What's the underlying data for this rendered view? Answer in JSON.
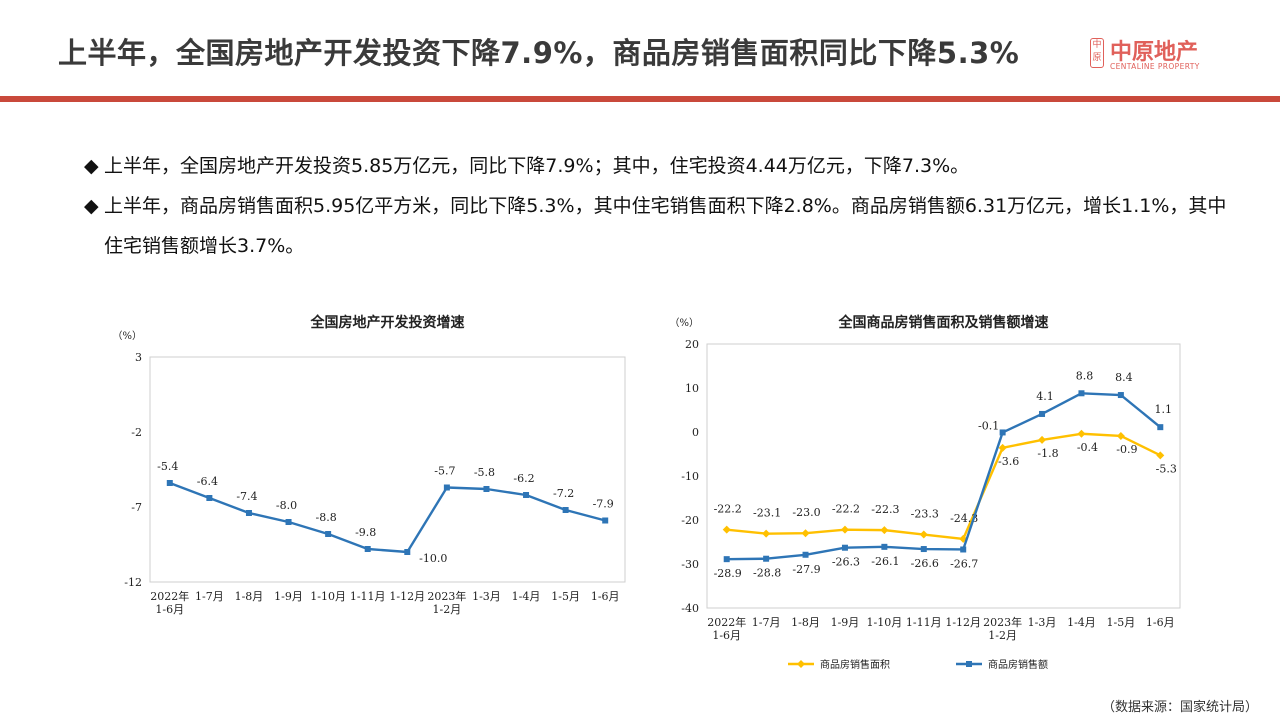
{
  "header": {
    "title": "上半年，全国房地产开发投资下降7.9%，商品房销售面积同比下降5.3%",
    "logo_cn": "中原地产",
    "logo_en": "CENTALINE PROPERTY",
    "logo_mark": "中原",
    "accent_color": "#c9493b"
  },
  "bullets": [
    {
      "marker": "◆",
      "text": "上半年，全国房地产开发投资5.85万亿元，同比下降7.9%；其中，住宅投资4.44万亿元，下降7.3%。"
    },
    {
      "marker": "◆",
      "text": "上半年，商品房销售面积5.95亿平方米，同比下降5.3%，其中住宅销售面积下降2.8%。商品房销售额6.31万亿元，增长1.1%，其中住宅销售额增长3.7%。"
    }
  ],
  "chart_data": [
    {
      "type": "line",
      "title": "全国房地产开发投资增速",
      "unit": "（%）",
      "categories": [
        "2022年\n1-6月",
        "1-7月",
        "1-8月",
        "1-9月",
        "1-10月",
        "1-11月",
        "1-12月",
        "2023年\n1-2月",
        "1-3月",
        "1-4月",
        "1-5月",
        "1-6月"
      ],
      "yticks": [
        3,
        -2,
        -7,
        -12
      ],
      "ylim": [
        -12,
        3
      ],
      "grid": false,
      "series": [
        {
          "values": [
            -5.4,
            -6.4,
            -7.4,
            -8.0,
            -8.8,
            -9.8,
            -10.0,
            -5.7,
            -5.8,
            -6.2,
            -7.2,
            -7.9
          ],
          "color": "#2e75b6"
        }
      ]
    },
    {
      "type": "line",
      "title": "全国商品房销售面积及销售额增速",
      "unit": "（%）",
      "categories": [
        "2022年\n1-6月",
        "1-7月",
        "1-8月",
        "1-9月",
        "1-10月",
        "1-11月",
        "1-12月",
        "2023年\n1-2月",
        "1-3月",
        "1-4月",
        "1-5月",
        "1-6月"
      ],
      "yticks": [
        20,
        10,
        0,
        -10,
        -20,
        -30,
        -40
      ],
      "ylim": [
        -40,
        20
      ],
      "grid": false,
      "legend": "bottom",
      "series": [
        {
          "name": "商品房销售面积",
          "values": [
            -22.2,
            -23.1,
            -23.0,
            -22.2,
            -22.3,
            -23.3,
            -24.3,
            -3.6,
            -1.8,
            -0.4,
            -0.9,
            -5.3
          ],
          "color": "#ffc000",
          "marker": "diamond"
        },
        {
          "name": "商品房销售额",
          "values": [
            -28.9,
            -28.8,
            -27.9,
            -26.3,
            -26.1,
            -26.6,
            -26.7,
            -0.1,
            4.1,
            8.8,
            8.4,
            1.1
          ],
          "color": "#2e75b6",
          "marker": "square"
        }
      ]
    }
  ],
  "source": "（数据来源：国家统计局）"
}
